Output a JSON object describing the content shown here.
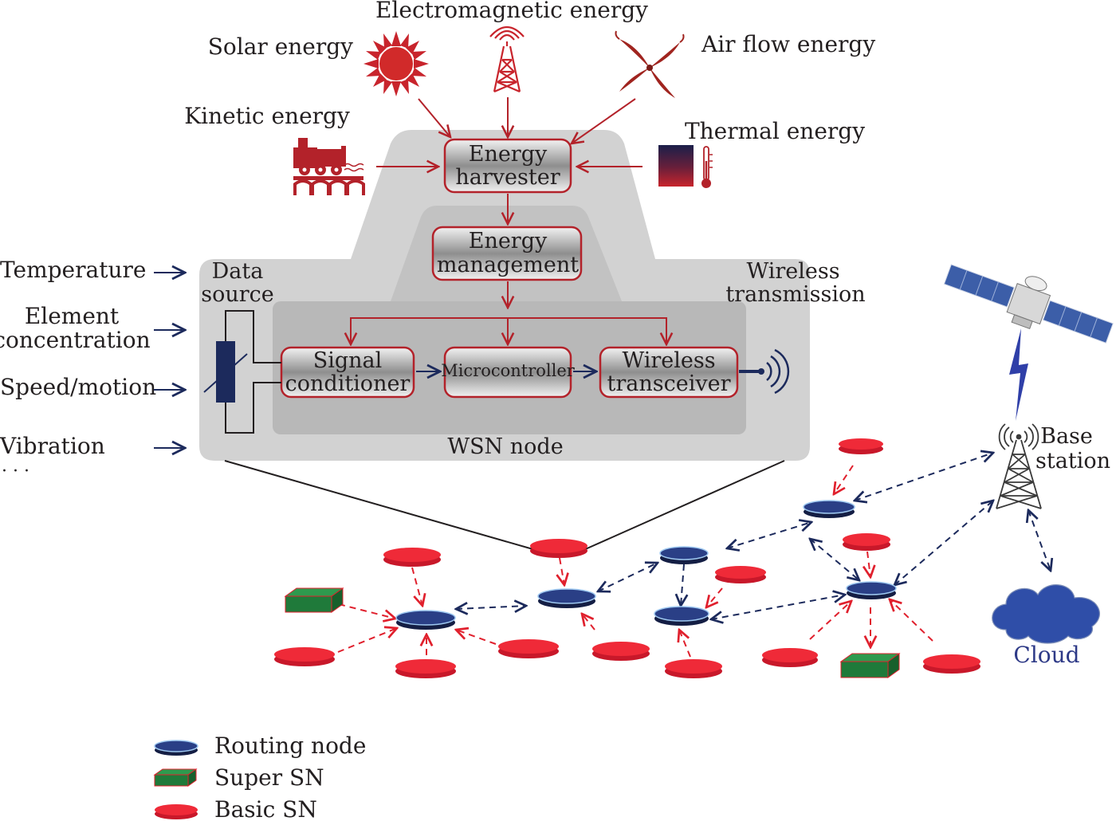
{
  "colors": {
    "red": "#b3222a",
    "bright_red": "#e8202f",
    "navy": "#1c2a5c",
    "routing_blue": "#2a3f86",
    "super_green": "#1f7a3a",
    "panel_gray": "#cfcfcf",
    "inner_gray": "#bdbdbd",
    "cloud_blue": "#2f4ea8"
  },
  "energy_sources": {
    "electromagnetic": "Electromagnetic energy",
    "solar": "Solar energy",
    "air_flow": "Air flow energy",
    "kinetic": "Kinetic energy",
    "thermal": "Thermal energy"
  },
  "node_blocks": {
    "harvester_line1": "Energy",
    "harvester_line2": "harvester",
    "management_line1": "Energy",
    "management_line2": "management",
    "signal_line1": "Signal",
    "signal_line2": "conditioner",
    "microcontroller": "Microcontroller",
    "transceiver_line1": "Wireless",
    "transceiver_line2": "transceiver"
  },
  "node_labels": {
    "data_source_line1": "Data",
    "data_source_line2": "source",
    "wireless_line1": "Wireless",
    "wireless_line2": "transmission",
    "wsn_node": "WSN node"
  },
  "inputs": {
    "temperature": "Temperature",
    "element_line1": "Element",
    "element_line2": "concentration",
    "speed": "Speed/motion",
    "vibration": "Vibration",
    "ellipsis": "· · ·"
  },
  "network": {
    "base_line1": "Base",
    "base_line2": "station",
    "cloud": "Cloud"
  },
  "legend": {
    "routing": "Routing node",
    "super": "Super SN",
    "basic": "Basic SN"
  }
}
